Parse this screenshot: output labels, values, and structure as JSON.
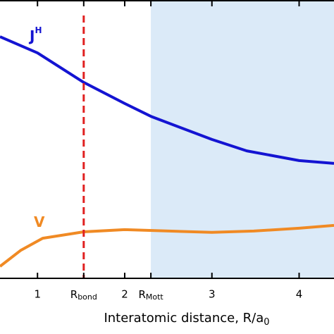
{
  "chart_data": {
    "type": "line",
    "xlabel": "Interatomic distance, R/a",
    "xlabel_sub": "0",
    "xlim": [
      0.57,
      4.4
    ],
    "ylim": [
      0,
      10
    ],
    "xticks": [
      1,
      2,
      3,
      4,
      {
        "value": 1.53,
        "label": "R",
        "sub": "bond",
        "style": "dashed-line",
        "color": "#e02020"
      },
      {
        "value": 2.3,
        "label": "R",
        "sub": "Mott",
        "style": "shade-from",
        "color": "#dbeaf8"
      }
    ],
    "series": [
      {
        "name": "J",
        "superscript": "H",
        "color": "#1414d2",
        "x": [
          0.57,
          1,
          1.53,
          2,
          2.3,
          3,
          3.4,
          4,
          4.4
        ],
        "values": [
          8.68,
          8.1,
          7.04,
          6.28,
          5.82,
          4.99,
          4.58,
          4.23,
          4.13
        ]
      },
      {
        "name": "V",
        "color": "#f08a24",
        "x": [
          0.57,
          0.81,
          1.06,
          1.53,
          2,
          2.51,
          3,
          3.48,
          4,
          4.4
        ],
        "values": [
          0.43,
          1.01,
          1.44,
          1.67,
          1.75,
          1.7,
          1.65,
          1.7,
          1.8,
          1.9
        ]
      }
    ]
  }
}
